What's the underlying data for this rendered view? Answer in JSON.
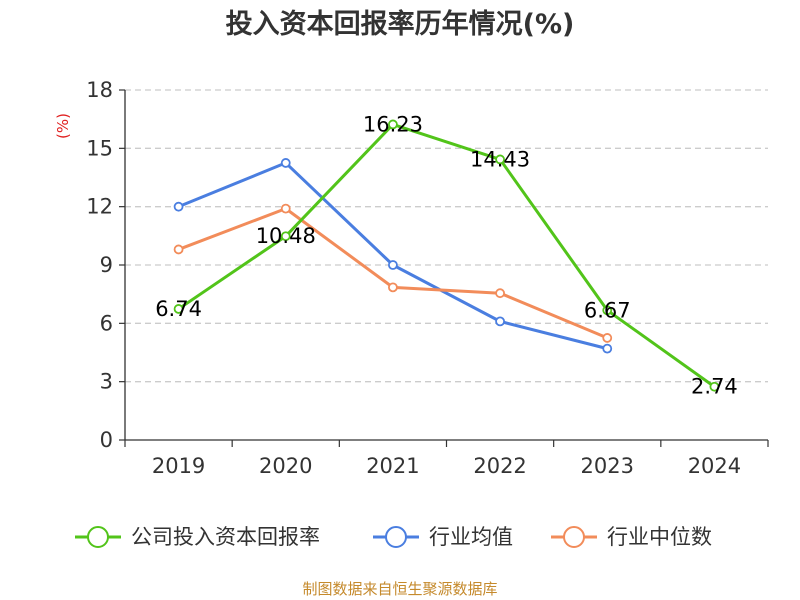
{
  "chart_data": {
    "type": "line",
    "title": "投入资本回报率历年情况(%)",
    "ylabel": "(%)",
    "xlabel": "",
    "categories": [
      "2019",
      "2020",
      "2021",
      "2022",
      "2023",
      "2024"
    ],
    "ylim": [
      0,
      18
    ],
    "yticks": [
      "0",
      "3",
      "6",
      "9",
      "12",
      "15",
      "18"
    ],
    "grid": true,
    "legend_position": "bottom",
    "series": [
      {
        "name": "公司投入资本回报率",
        "color": "#52c41a",
        "values": [
          6.74,
          10.48,
          16.23,
          14.43,
          6.67,
          2.74
        ],
        "labels": [
          "6.74",
          "10.48",
          "16.23",
          "14.43",
          "6.67",
          "2.74"
        ]
      },
      {
        "name": "行业均值",
        "color": "#4a7ee0",
        "values": [
          12.0,
          14.25,
          9.0,
          6.1,
          4.7,
          null
        ]
      },
      {
        "name": "行业中位数",
        "color": "#f28c5a",
        "values": [
          9.8,
          11.9,
          7.85,
          7.55,
          5.25,
          null
        ]
      }
    ],
    "source": "制图数据来自恒生聚源数据库",
    "colors": {
      "ylabel": "#e02020",
      "source": "#c58a2c"
    }
  }
}
